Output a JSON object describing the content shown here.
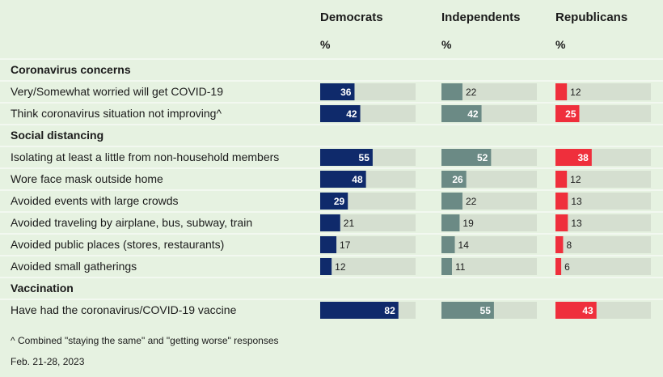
{
  "headers": {
    "dem": "Democrats",
    "ind": "Independents",
    "rep": "Republicans",
    "pct": "%"
  },
  "colors": {
    "background": "#e6f2e1",
    "track": "#d5dfd0",
    "dem": "#0f2a6b",
    "ind": "#6b8a85",
    "rep": "#ef2f3c",
    "row_divider": "#ffffff"
  },
  "chart_data": {
    "type": "bar",
    "orientation": "horizontal",
    "xlim": [
      0,
      100
    ],
    "series": [
      {
        "name": "Democrats",
        "color": "#0f2a6b"
      },
      {
        "name": "Independents",
        "color": "#6b8a85"
      },
      {
        "name": "Republicans",
        "color": "#ef2f3c"
      }
    ],
    "groups": [
      {
        "title": "Coronavirus concerns",
        "rows": [
          {
            "label": "Very/Somewhat worried will get COVID-19",
            "values": [
              36,
              22,
              12
            ]
          },
          {
            "label": "Think coronavirus situation not improving^",
            "values": [
              42,
              42,
              25
            ]
          }
        ]
      },
      {
        "title": "Social distancing",
        "rows": [
          {
            "label": "Isolating at least a little from non-household members",
            "values": [
              55,
              52,
              38
            ]
          },
          {
            "label": "Wore face mask outside home",
            "values": [
              48,
              26,
              12
            ]
          },
          {
            "label": "Avoided events with large crowds",
            "values": [
              29,
              22,
              13
            ]
          },
          {
            "label": "Avoided traveling by airplane, bus, subway, train",
            "values": [
              21,
              19,
              13
            ]
          },
          {
            "label": "Avoided public places (stores, restaurants)",
            "values": [
              17,
              14,
              8
            ]
          },
          {
            "label": "Avoided small gatherings",
            "values": [
              12,
              11,
              6
            ]
          }
        ]
      },
      {
        "title": "Vaccination",
        "rows": [
          {
            "label": "Have had the coronavirus/COVID-19 vaccine",
            "values": [
              82,
              55,
              43
            ]
          }
        ]
      }
    ]
  },
  "footnotes": {
    "note": "^ Combined \"staying the same\" and \"getting worse\" responses",
    "date": "Feb. 21-28, 2023"
  }
}
